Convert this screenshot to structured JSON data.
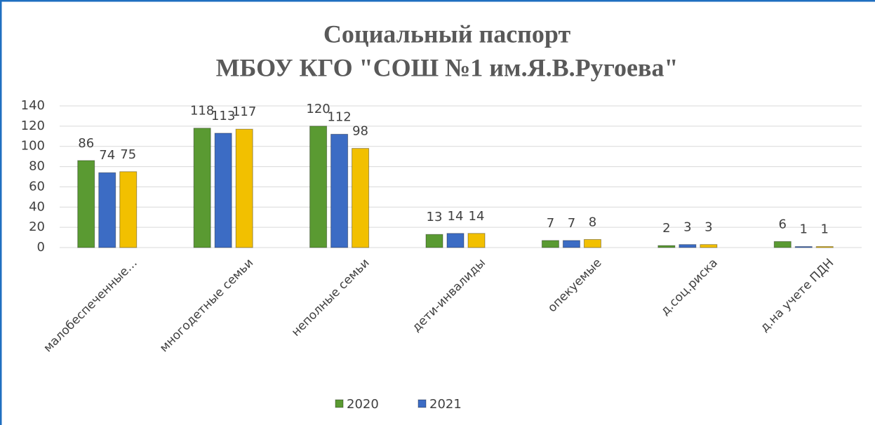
{
  "chart_data": {
    "type": "bar",
    "title": [
      "Социальный паспорт",
      "МБОУ КГО \"СОШ №1 им.Я.В.Ругоева\""
    ],
    "categories": [
      "малобеспеченные…",
      "многодетные семьи",
      "неполные семьи",
      "дети-инвалиды",
      "опекуемые",
      "д.соц.риска",
      "д.на учете ПДН"
    ],
    "series": [
      {
        "name": "2020",
        "color": "#5a9a32",
        "values": [
          86,
          118,
          120,
          13,
          7,
          2,
          6
        ]
      },
      {
        "name": "2021",
        "color": "#3c6cc4",
        "values": [
          74,
          113,
          112,
          14,
          7,
          3,
          1
        ]
      },
      {
        "color": "#f2c000",
        "values": [
          75,
          117,
          98,
          14,
          8,
          3,
          1
        ]
      }
    ],
    "ylim": [
      0,
      140
    ],
    "yticks": [
      0,
      20,
      40,
      60,
      80,
      100,
      120,
      140
    ],
    "grid": true,
    "legend": "bottom"
  }
}
